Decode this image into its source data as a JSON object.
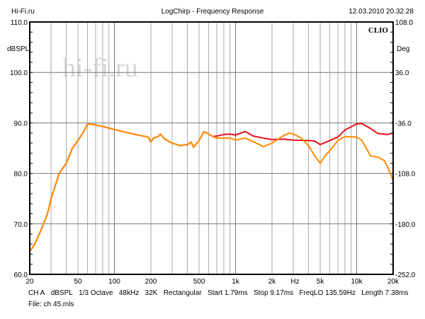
{
  "header": {
    "site": "Hi-Fi.ru",
    "title": "LogChirp - Frequency Response",
    "datetime": "12.03.2010 20.32.28"
  },
  "logo": "CLIO",
  "watermark": "hi-fi.ru",
  "footer": {
    "params": [
      "CH A",
      "dBSPL",
      "1/3 Octave",
      "48kHz",
      "32K",
      "Rectangular",
      "Start 1.79ms",
      "Stop 9.17ms",
      "FreqLO 135.59Hz",
      "Length 7.38ms"
    ],
    "file": "File: ch 45.mls"
  },
  "chart_data": {
    "type": "line",
    "title": "LogChirp - Frequency Response",
    "ylabel": "dBSPL",
    "y2label": "Deg",
    "xlabel": "Hz",
    "xscale": "log",
    "xlim": [
      20,
      20000
    ],
    "ylim": [
      60,
      110
    ],
    "xticks": [
      {
        "v": 20,
        "l": "20"
      },
      {
        "v": 50,
        "l": "50"
      },
      {
        "v": 100,
        "l": "100"
      },
      {
        "v": 200,
        "l": "200"
      },
      {
        "v": 500,
        "l": "500"
      },
      {
        "v": 1000,
        "l": "1k"
      },
      {
        "v": 2000,
        "l": "2k"
      },
      {
        "v": 5000,
        "l": "5k"
      },
      {
        "v": 10000,
        "l": "10k"
      },
      {
        "v": 20000,
        "l": "20k"
      }
    ],
    "xunit_tick": {
      "v": 3100,
      "l": "Hz"
    },
    "yticks": [
      "110.0",
      "100.0",
      "90.0",
      "80.0",
      "70.0",
      "60.0"
    ],
    "y2ticks": [
      "108.0",
      "36.0",
      "-36.0",
      "-108.0",
      "-180.0",
      "-252.0"
    ],
    "grid": true,
    "series": [
      {
        "name": "red",
        "color": "#e8101a",
        "points": [
          [
            20,
            64.5
          ],
          [
            22,
            66
          ],
          [
            25,
            69
          ],
          [
            28,
            72
          ],
          [
            30,
            75
          ],
          [
            35,
            80
          ],
          [
            40,
            82
          ],
          [
            45,
            85
          ],
          [
            50,
            86.5
          ],
          [
            55,
            88
          ],
          [
            60,
            89.8
          ],
          [
            70,
            89.6
          ],
          [
            80,
            89.3
          ],
          [
            100,
            88.7
          ],
          [
            150,
            87.7
          ],
          [
            190,
            87.2
          ],
          [
            200,
            86.2
          ],
          [
            210,
            87
          ],
          [
            230,
            87.3
          ],
          [
            240,
            87.8
          ],
          [
            260,
            86.8
          ],
          [
            300,
            86
          ],
          [
            350,
            85.5
          ],
          [
            400,
            85.7
          ],
          [
            430,
            86.2
          ],
          [
            450,
            85.2
          ],
          [
            500,
            86.5
          ],
          [
            550,
            88.3
          ],
          [
            600,
            87.8
          ],
          [
            650,
            87.3
          ],
          [
            700,
            87.4
          ],
          [
            800,
            87.7
          ],
          [
            900,
            87.8
          ],
          [
            1000,
            87.6
          ],
          [
            1200,
            88.3
          ],
          [
            1400,
            87.4
          ],
          [
            1700,
            87
          ],
          [
            2000,
            86.7
          ],
          [
            2500,
            86.8
          ],
          [
            3000,
            86.6
          ],
          [
            4000,
            86.5
          ],
          [
            4500,
            86.4
          ],
          [
            5000,
            85.7
          ],
          [
            6000,
            86.5
          ],
          [
            7000,
            87.2
          ],
          [
            8000,
            88.6
          ],
          [
            10000,
            89.8
          ],
          [
            11000,
            89.9
          ],
          [
            13000,
            88.9
          ],
          [
            15000,
            87.9
          ],
          [
            18000,
            87.7
          ],
          [
            20000,
            88
          ]
        ]
      },
      {
        "name": "orange",
        "color": "#ff8c00",
        "points": [
          [
            20,
            64.5
          ],
          [
            22,
            66
          ],
          [
            25,
            69
          ],
          [
            28,
            72
          ],
          [
            30,
            75
          ],
          [
            35,
            80
          ],
          [
            40,
            82
          ],
          [
            45,
            85
          ],
          [
            50,
            86.5
          ],
          [
            55,
            88
          ],
          [
            60,
            89.8
          ],
          [
            70,
            89.6
          ],
          [
            80,
            89.3
          ],
          [
            100,
            88.7
          ],
          [
            150,
            87.7
          ],
          [
            190,
            87.2
          ],
          [
            200,
            86.2
          ],
          [
            210,
            87
          ],
          [
            230,
            87.3
          ],
          [
            240,
            87.8
          ],
          [
            260,
            86.8
          ],
          [
            300,
            86
          ],
          [
            350,
            85.5
          ],
          [
            400,
            85.7
          ],
          [
            430,
            86.2
          ],
          [
            450,
            85.2
          ],
          [
            500,
            86.5
          ],
          [
            550,
            88.3
          ],
          [
            600,
            87.8
          ],
          [
            650,
            87.3
          ],
          [
            700,
            87
          ],
          [
            900,
            87
          ],
          [
            1000,
            86.6
          ],
          [
            1200,
            87
          ],
          [
            1400,
            86.3
          ],
          [
            1700,
            85.3
          ],
          [
            2000,
            86
          ],
          [
            2500,
            87.5
          ],
          [
            2800,
            88
          ],
          [
            3000,
            87.8
          ],
          [
            3500,
            87
          ],
          [
            4000,
            85.5
          ],
          [
            4500,
            83.5
          ],
          [
            5000,
            82
          ],
          [
            5500,
            83.5
          ],
          [
            6000,
            84.5
          ],
          [
            7000,
            86.5
          ],
          [
            8000,
            87.3
          ],
          [
            9000,
            87.2
          ],
          [
            10000,
            87.2
          ],
          [
            11000,
            86.6
          ],
          [
            13000,
            83.5
          ],
          [
            15000,
            83.2
          ],
          [
            17000,
            82.5
          ],
          [
            19000,
            80
          ],
          [
            20000,
            78.5
          ]
        ]
      }
    ]
  }
}
